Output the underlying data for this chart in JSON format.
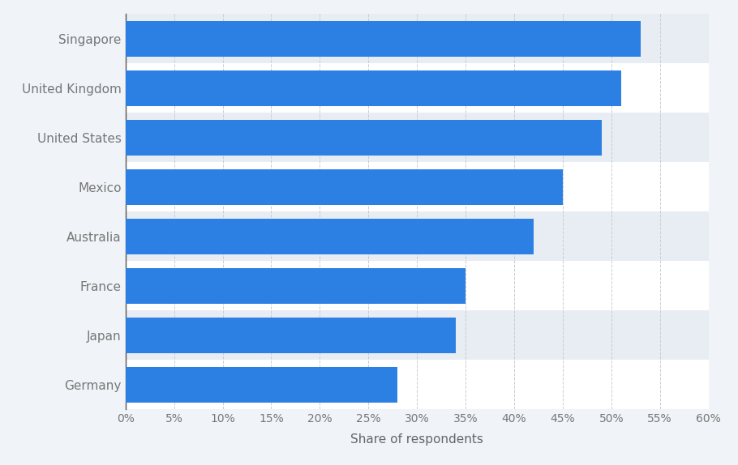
{
  "countries": [
    "Germany",
    "Japan",
    "France",
    "Australia",
    "Mexico",
    "United States",
    "United Kingdom",
    "Singapore"
  ],
  "values": [
    28,
    34,
    35,
    42,
    45,
    49,
    51,
    53
  ],
  "bar_color": "#2d80e3",
  "background_color": "#f0f3f8",
  "plot_bg_color": "#ffffff",
  "stripe_color": "#e8ecf3",
  "xlabel": "Share of respondents",
  "xlim": [
    0,
    60
  ],
  "xticks": [
    0,
    5,
    10,
    15,
    20,
    25,
    30,
    35,
    40,
    45,
    50,
    55,
    60
  ],
  "bar_height": 0.72,
  "grid_color": "#c8cdd6",
  "tick_label_color": "#777777",
  "axis_label_color": "#666666",
  "label_fontsize": 11,
  "tick_fontsize": 10
}
